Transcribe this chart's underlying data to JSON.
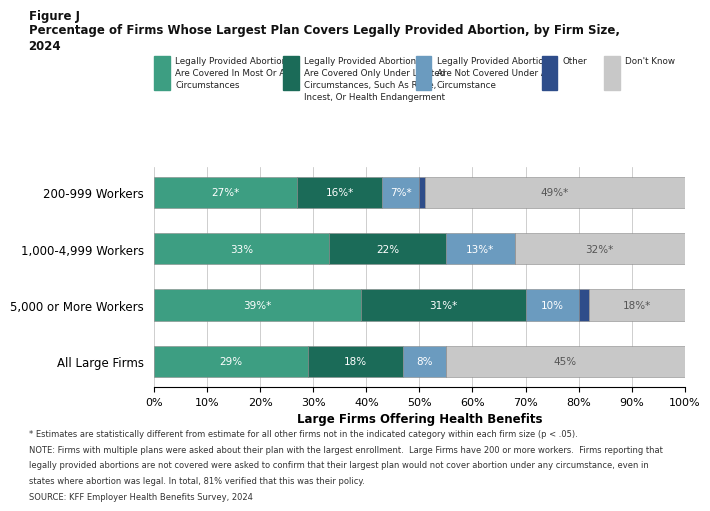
{
  "title_line1": "Figure J",
  "title_line2": "Percentage of Firms Whose Largest Plan Covers Legally Provided Abortion, by Firm Size,",
  "title_line3": "2024",
  "categories": [
    "200-999 Workers",
    "1,000-4,999 Workers",
    "5,000 or More Workers",
    "All Large Firms"
  ],
  "segments": {
    "most_all": [
      27,
      33,
      39,
      29
    ],
    "limited": [
      16,
      22,
      31,
      18
    ],
    "not_covered": [
      7,
      13,
      10,
      8
    ],
    "other": [
      1,
      0,
      2,
      0
    ],
    "dont_know": [
      49,
      32,
      18,
      45
    ]
  },
  "labels": {
    "most_all": [
      "27%*",
      "33%",
      "39%*",
      "29%"
    ],
    "limited": [
      "16%*",
      "22%",
      "31%*",
      "18%"
    ],
    "not_covered": [
      "7%*",
      "13%*",
      "10%",
      "8%"
    ],
    "other": [
      "",
      "",
      "",
      ""
    ],
    "dont_know": [
      "49%*",
      "32%*",
      "18%*",
      "45%"
    ]
  },
  "colors": {
    "most_all": "#3d9e82",
    "limited": "#1b6b58",
    "not_covered": "#6b9bbf",
    "other": "#2e4d8a",
    "dont_know": "#c8c8c8"
  },
  "legend_labels": {
    "most_all": "Legally Provided Abortions\nAre Covered In Most Or All\nCircumstances",
    "limited": "Legally Provided Abortions\nAre Covered Only Under Limited\nCircumstances, Such As Rape,\nIncest, Or Health Endangerment",
    "not_covered": "Legally Provided Abortions\nAre Not Covered Under Any\nCircumstance",
    "other": "Other",
    "dont_know": "Don't Know"
  },
  "xlabel": "Large Firms Offering Health Benefits",
  "xlim": [
    0,
    100
  ],
  "xticks": [
    0,
    10,
    20,
    30,
    40,
    50,
    60,
    70,
    80,
    90,
    100
  ],
  "footnote1": "* Estimates are statistically different from estimate for all other firms not in the indicated category within each firm size (p < .05).",
  "footnote2": "NOTE: Firms with multiple plans were asked about their plan with the largest enrollment.  Large Firms have 200 or more workers.  Firms reporting that",
  "footnote3": "legally provided abortions are not covered were asked to confirm that their largest plan would not cover abortion under any circumstance, even in",
  "footnote4": "states where abortion was legal. In total, 81% verified that this was their policy.",
  "footnote5": "SOURCE: KFF Employer Health Benefits Survey, 2024",
  "bar_height": 0.55,
  "background_color": "#ffffff"
}
